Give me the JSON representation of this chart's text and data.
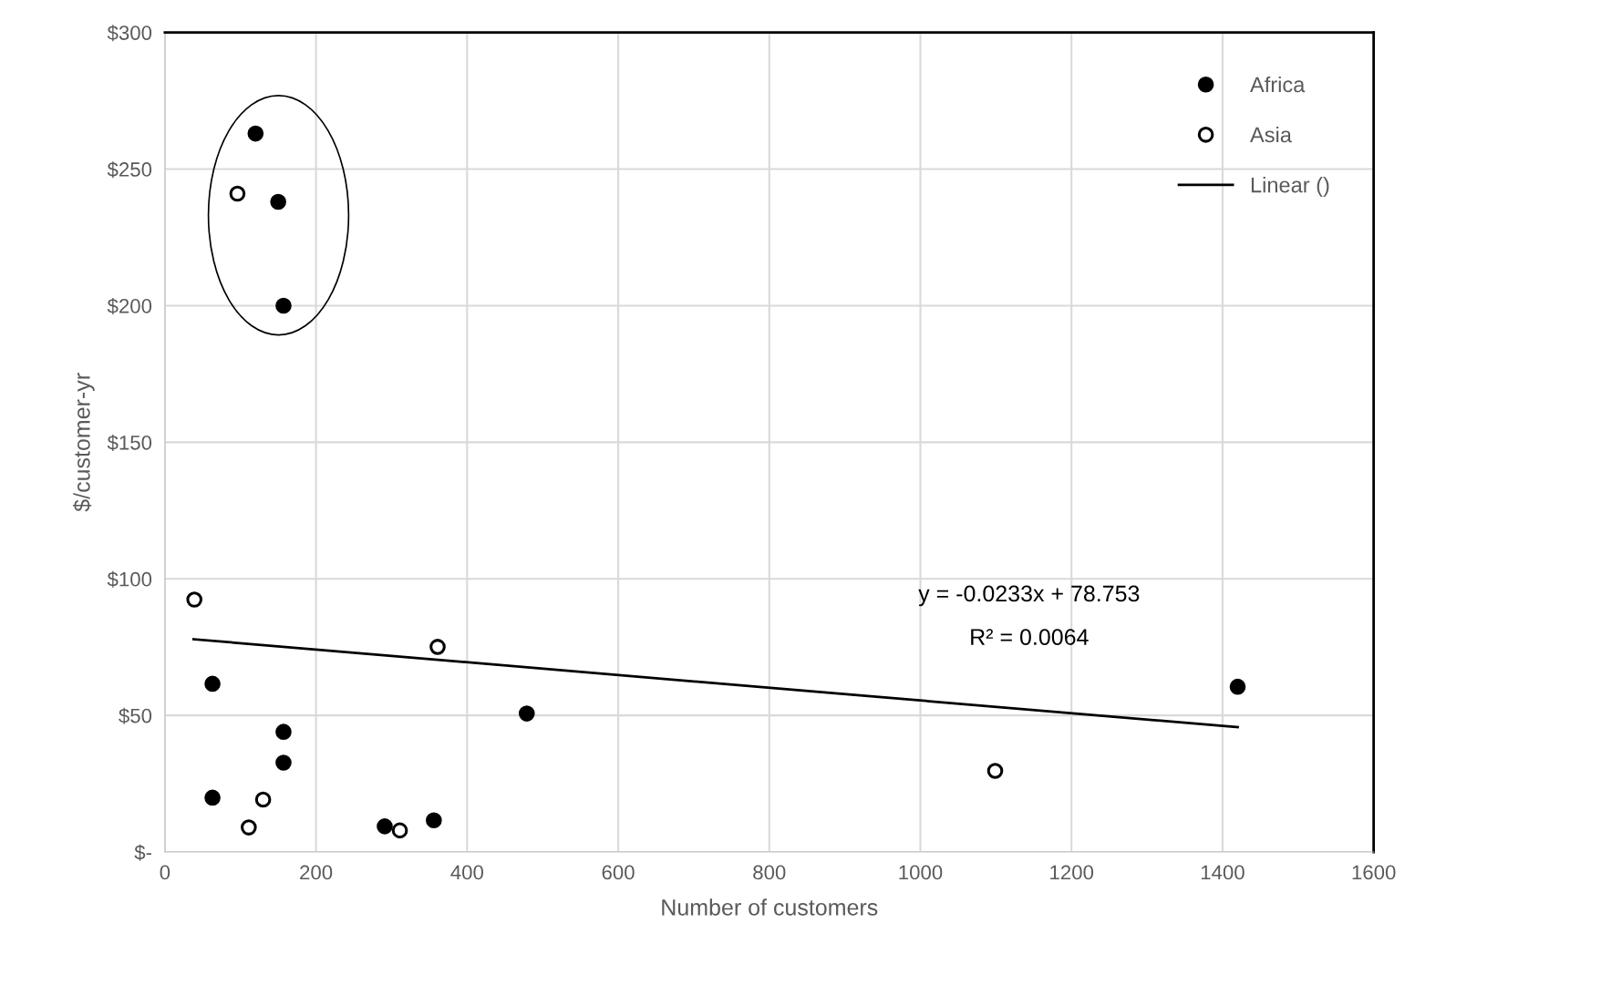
{
  "chart_data": {
    "type": "scatter",
    "xlabel": "Number of customers",
    "ylabel": "$/customer-yr",
    "xlim": [
      0,
      1600
    ],
    "xticks": [
      0,
      200,
      400,
      600,
      800,
      1000,
      1200,
      1400,
      1600
    ],
    "ylim": [
      0,
      300
    ],
    "yticks": [
      {
        "value": 0,
        "label": "$-"
      },
      {
        "value": 50,
        "label": "$50"
      },
      {
        "value": 100,
        "label": "$100"
      },
      {
        "value": 150,
        "label": "$150"
      },
      {
        "value": 200,
        "label": "$200"
      },
      {
        "value": 250,
        "label": "$250"
      },
      {
        "value": 300,
        "label": "$300"
      }
    ],
    "grid": true,
    "legend": "top right",
    "marker": "circle",
    "series": [
      {
        "name": "Africa",
        "color": "#000000",
        "x": [
          120,
          150,
          157,
          63,
          157,
          157,
          63,
          291,
          356,
          479,
          1420
        ],
        "values": [
          263,
          238,
          200,
          61.6,
          44,
          32.7,
          19.9,
          9.4,
          11.6,
          50.7,
          60.5
        ]
      },
      {
        "name": "Asia",
        "color": "#ffffff",
        "x": [
          96,
          39,
          361,
          130,
          111,
          311,
          1099
        ],
        "values": [
          241,
          92.4,
          75.1,
          19.2,
          9,
          7.9,
          29.7
        ]
      },
      {
        "name": "Linear ()",
        "type": "line",
        "marker": "none",
        "color": "#000000",
        "x": [
          38,
          1420
        ],
        "values": [
          77.9,
          45.7
        ]
      }
    ],
    "annotations": [
      "y = -0.0233x + 78.753",
      "R² = 0.0064"
    ]
  }
}
